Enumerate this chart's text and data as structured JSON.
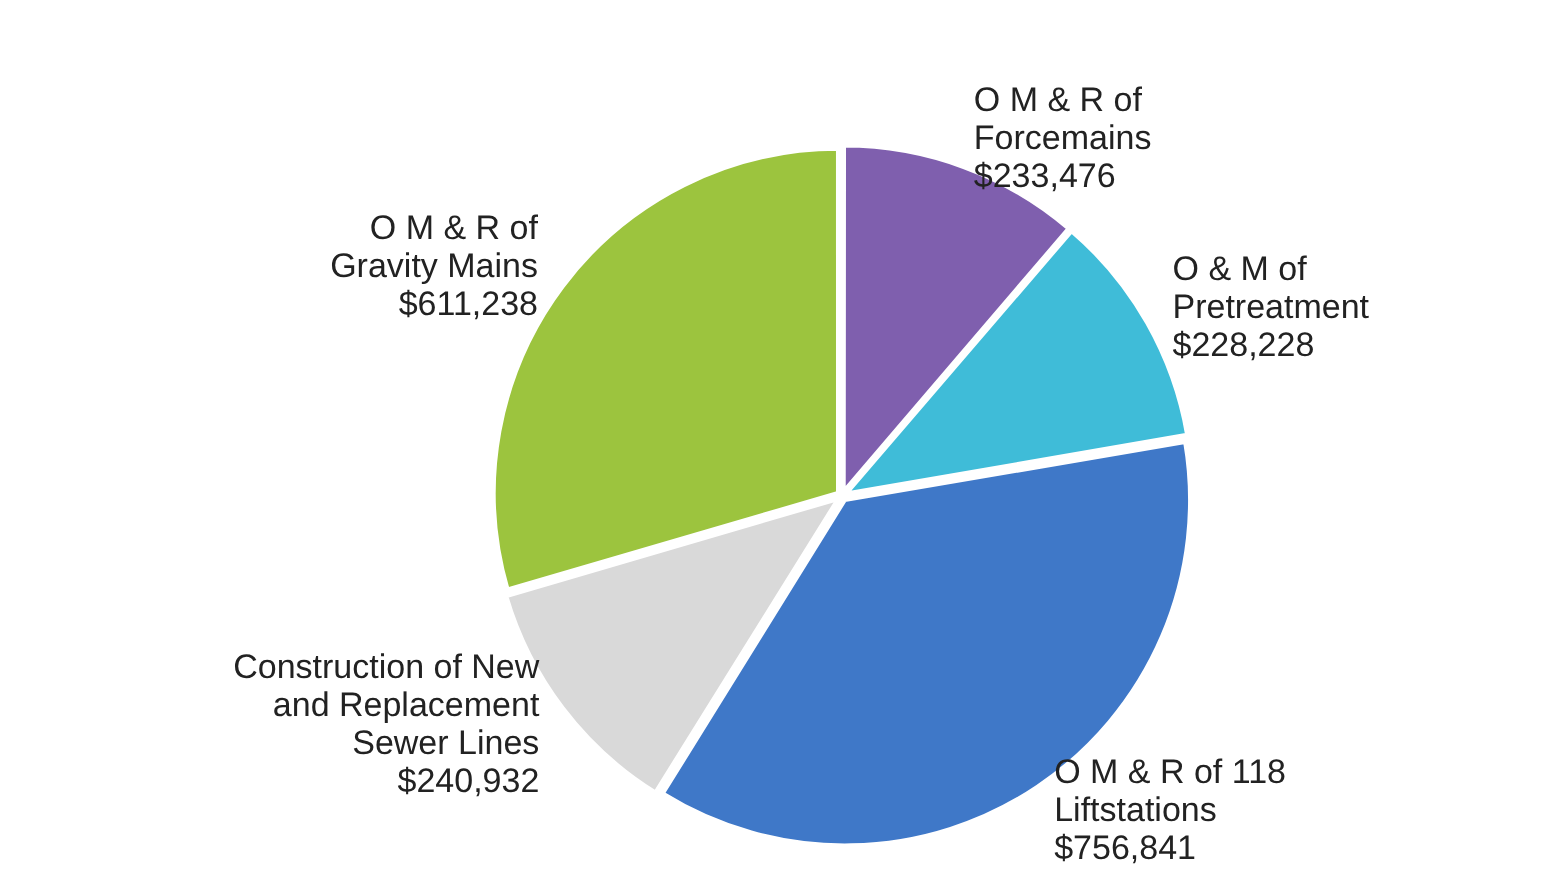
{
  "chart_data": {
    "type": "pie",
    "categories": [
      "O M & R of\nForcemains",
      "O & M of\nPretreatment",
      "O M & R of 118\nLiftstations",
      "Construction of New\nand Replacement\nSewer Lines",
      "O M & R of\nGravity Mains"
    ],
    "values": [
      233476,
      228228,
      756841,
      240932,
      611238
    ],
    "value_labels": [
      "$233,476",
      "$228,228",
      "$756,841",
      "$240,932",
      "$611,238"
    ],
    "colors": [
      "#7f5fae",
      "#3fbcd8",
      "#3f78c8",
      "#d9d9d9",
      "#9cc43e"
    ]
  }
}
